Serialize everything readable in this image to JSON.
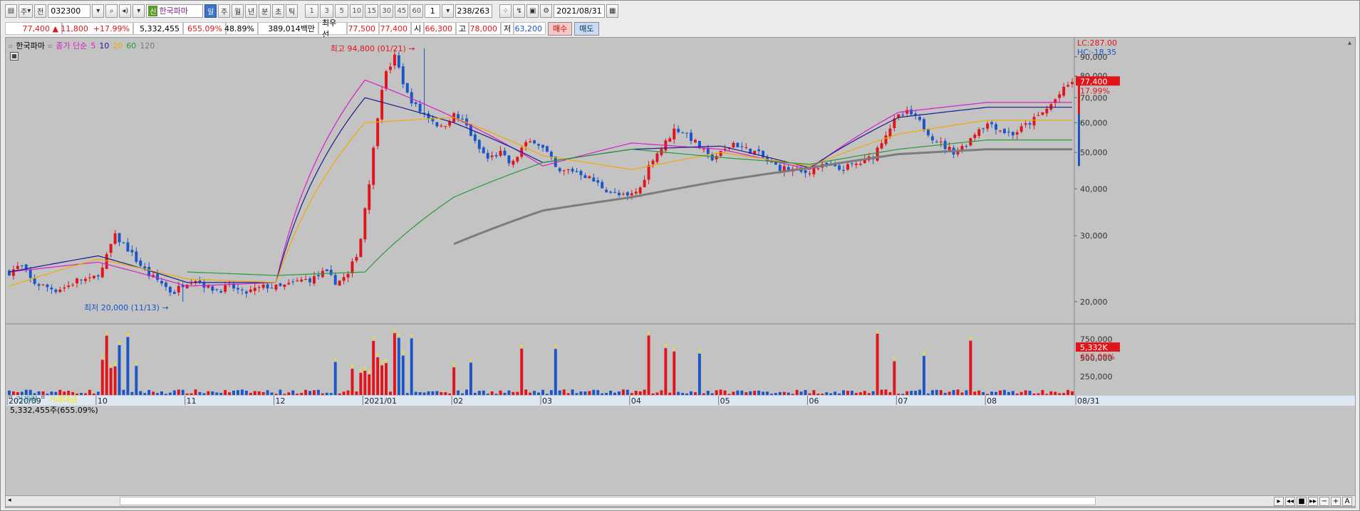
{
  "toolbar": {
    "market_type": "주",
    "mode": "전",
    "code": "032300",
    "new_badge": "신",
    "stock_name": "한국파마",
    "periods": [
      "일",
      "주",
      "월",
      "년",
      "분",
      "초",
      "틱"
    ],
    "active_period": "일",
    "intervals": [
      "1",
      "3",
      "5",
      "10",
      "15",
      "30",
      "45",
      "60"
    ],
    "unit": "1",
    "page": "238/263",
    "date": "2021/08/31"
  },
  "quote": {
    "price": "77,400 ▲",
    "change": "11,800",
    "change_pct": "+17.99%",
    "volume": "5,332,455",
    "volume_ratio": "655.09%",
    "turnover": "48.89%",
    "amount": "389,014백만",
    "best_label": "최우선",
    "best_ask": "77,500",
    "best_bid": "77,400",
    "open_label": "시",
    "open": "66,300",
    "high_label": "고",
    "high": "78,000",
    "low_label": "저",
    "low": "63,200",
    "buy_label": "매수",
    "sell_label": "매도"
  },
  "legend": {
    "name": "한국파마",
    "ma_label": "종가 단순",
    "ma5": "5",
    "ma10": "10",
    "ma20": "20",
    "ma60": "60",
    "ma120": "120"
  },
  "volume_legend": {
    "vol": "거래량",
    "amount": "거래대금",
    "info": "5,332,455주(655.09%)"
  },
  "price_axis": {
    "lc": "LC:287.00",
    "hc": "HC:-18.35",
    "current": "77,400",
    "current_pct": "17.99%",
    "ticks": [
      "90,000",
      "80,000",
      "70,000",
      "60,000",
      "50,000",
      "40,000",
      "30,000",
      "20,000"
    ],
    "vol_ticks": [
      "750,000",
      "500,000",
      "250,000"
    ],
    "vol_current": "5,332K",
    "vol_pct": "655.09%"
  },
  "annotations": {
    "high": "최고 94,800 (01/21)",
    "low": "최저 20,000 (11/13)"
  },
  "x_labels": [
    "2020/09",
    "10",
    "11",
    "12",
    "2021/01",
    "02",
    "03",
    "04",
    "05",
    "06",
    "07",
    "08",
    "08/31"
  ],
  "colors": {
    "up": "#e0151c",
    "down": "#1a56c8",
    "ma5": "#d81ec8",
    "ma10": "#1b1b8a",
    "ma20": "#f2a900",
    "ma60": "#2a9a3a",
    "ma120": "#7c7c7c",
    "bg": "#c3c3c3"
  },
  "chart_data": {
    "type": "candlestick",
    "scale": "log",
    "ylim": [
      18000,
      96000
    ],
    "monthly_ohlc": [
      {
        "month": "2020/09",
        "open": 24000,
        "high": 26500,
        "low": 21500,
        "close": 23500
      },
      {
        "month": "2020/10",
        "open": 23000,
        "high": 32500,
        "low": 20500,
        "close": 23000
      },
      {
        "month": "2020/11",
        "open": 23000,
        "high": 25000,
        "low": 20000,
        "close": 21800
      },
      {
        "month": "2020/12",
        "open": 21800,
        "high": 24000,
        "low": 20500,
        "close": 22500
      },
      {
        "month": "2021/01",
        "open": 22500,
        "high": 94800,
        "low": 21500,
        "close": 73000
      },
      {
        "month": "2021/02",
        "open": 72000,
        "high": 74000,
        "low": 44000,
        "close": 51000
      },
      {
        "month": "2021/03",
        "open": 51000,
        "high": 62000,
        "low": 40000,
        "close": 41000
      },
      {
        "month": "2021/04",
        "open": 41000,
        "high": 76000,
        "low": 37500,
        "close": 55000
      },
      {
        "month": "2021/05",
        "open": 55000,
        "high": 57000,
        "low": 46000,
        "close": 47000
      },
      {
        "month": "2021/06",
        "open": 47000,
        "high": 49000,
        "low": 43000,
        "close": 45500
      },
      {
        "month": "2021/07",
        "open": 45500,
        "high": 67000,
        "low": 44000,
        "close": 52000
      },
      {
        "month": "2021/08",
        "open": 52000,
        "high": 78000,
        "low": 49000,
        "close": 77400
      }
    ],
    "series": [
      {
        "name": "5",
        "values": [
          24000,
          25500,
          22000,
          22500,
          78000,
          62000,
          46000,
          53000,
          51000,
          45000,
          64000,
          68000
        ]
      },
      {
        "name": "10",
        "values": [
          24000,
          26500,
          22500,
          22500,
          70000,
          60000,
          47000,
          51000,
          52000,
          45500,
          62000,
          66000
        ]
      },
      {
        "name": "20",
        "values": [
          22000,
          26000,
          23000,
          22500,
          60000,
          62000,
          49000,
          45000,
          50000,
          46000,
          56000,
          61000
        ]
      },
      {
        "name": "60",
        "values": [
          null,
          null,
          24000,
          23500,
          24000,
          38000,
          47000,
          51000,
          48500,
          46500,
          51000,
          54000
        ]
      },
      {
        "name": "120",
        "values": [
          null,
          null,
          null,
          null,
          null,
          28500,
          35000,
          38000,
          42000,
          45500,
          49500,
          51000
        ]
      }
    ],
    "volume_peak": "5,332K"
  }
}
